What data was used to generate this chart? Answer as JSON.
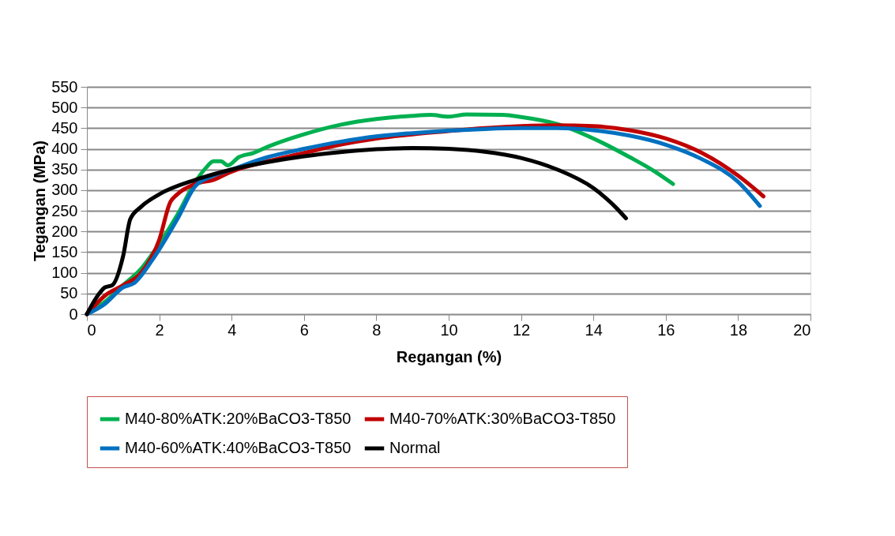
{
  "chart_data": {
    "type": "line",
    "xlabel": "Regangan (%)",
    "ylabel": "Tegangan (MPa)",
    "xlim": [
      0,
      20
    ],
    "xticks": [
      0,
      2,
      4,
      6,
      8,
      10,
      12,
      14,
      16,
      18,
      20
    ],
    "ylim": [
      0,
      550
    ],
    "yticks": [
      0,
      50,
      100,
      150,
      200,
      250,
      300,
      350,
      400,
      450,
      500,
      550
    ],
    "grid": "y",
    "legend": "bottom",
    "marker": "none",
    "line_style": "solid",
    "series": [
      {
        "name": "M40-80%ATK:20%BaCO3-T850",
        "color": "#00b050",
        "x": [
          0,
          0.5,
          1,
          1.5,
          2,
          2.5,
          3,
          3.3,
          3.5,
          3.7,
          3.9,
          4.2,
          4.6,
          5,
          6,
          7,
          8,
          9,
          9.5,
          10,
          10.5,
          11.5,
          12,
          13,
          14,
          15,
          15.7,
          16.2
        ],
        "values": [
          0,
          30,
          70,
          110,
          170,
          240,
          320,
          355,
          370,
          370,
          360,
          380,
          390,
          405,
          435,
          458,
          472,
          480,
          482,
          478,
          483,
          482,
          477,
          460,
          425,
          380,
          345,
          315
        ]
      },
      {
        "name": "M40-70%ATK:30%BaCO3-T850",
        "color": "#c00000",
        "x": [
          0,
          0.5,
          1,
          1.5,
          2,
          2.3,
          2.5,
          3,
          3.5,
          4,
          5,
          6,
          7,
          8,
          9,
          10,
          11,
          12,
          13,
          14,
          15,
          16,
          17,
          18,
          18.7
        ],
        "values": [
          0,
          45,
          70,
          100,
          180,
          270,
          290,
          315,
          325,
          345,
          370,
          390,
          410,
          425,
          435,
          443,
          450,
          455,
          457,
          455,
          445,
          425,
          390,
          335,
          285
        ]
      },
      {
        "name": "M40-60%ATK:40%BaCO3-T850",
        "color": "#0070c0",
        "x": [
          0,
          0.5,
          1,
          1.3,
          1.8,
          2.5,
          3,
          3.5,
          4,
          5,
          6,
          7,
          8,
          9,
          10,
          11,
          12,
          13,
          14,
          15,
          16,
          17,
          18,
          18.6
        ],
        "values": [
          0,
          25,
          65,
          75,
          130,
          230,
          310,
          335,
          350,
          380,
          400,
          417,
          430,
          438,
          444,
          448,
          450,
          450,
          445,
          432,
          410,
          375,
          320,
          262
        ]
      },
      {
        "name": "Normal",
        "color": "#000000",
        "x": [
          0,
          0.3,
          0.5,
          0.7,
          1,
          1.2,
          1.5,
          2,
          3,
          4,
          5,
          6,
          7,
          8,
          9,
          10,
          11,
          12,
          13,
          14,
          14.6,
          14.9
        ],
        "values": [
          0,
          45,
          65,
          70,
          140,
          230,
          260,
          290,
          325,
          350,
          368,
          382,
          392,
          399,
          402,
          400,
          393,
          378,
          350,
          305,
          260,
          232
        ]
      }
    ]
  }
}
